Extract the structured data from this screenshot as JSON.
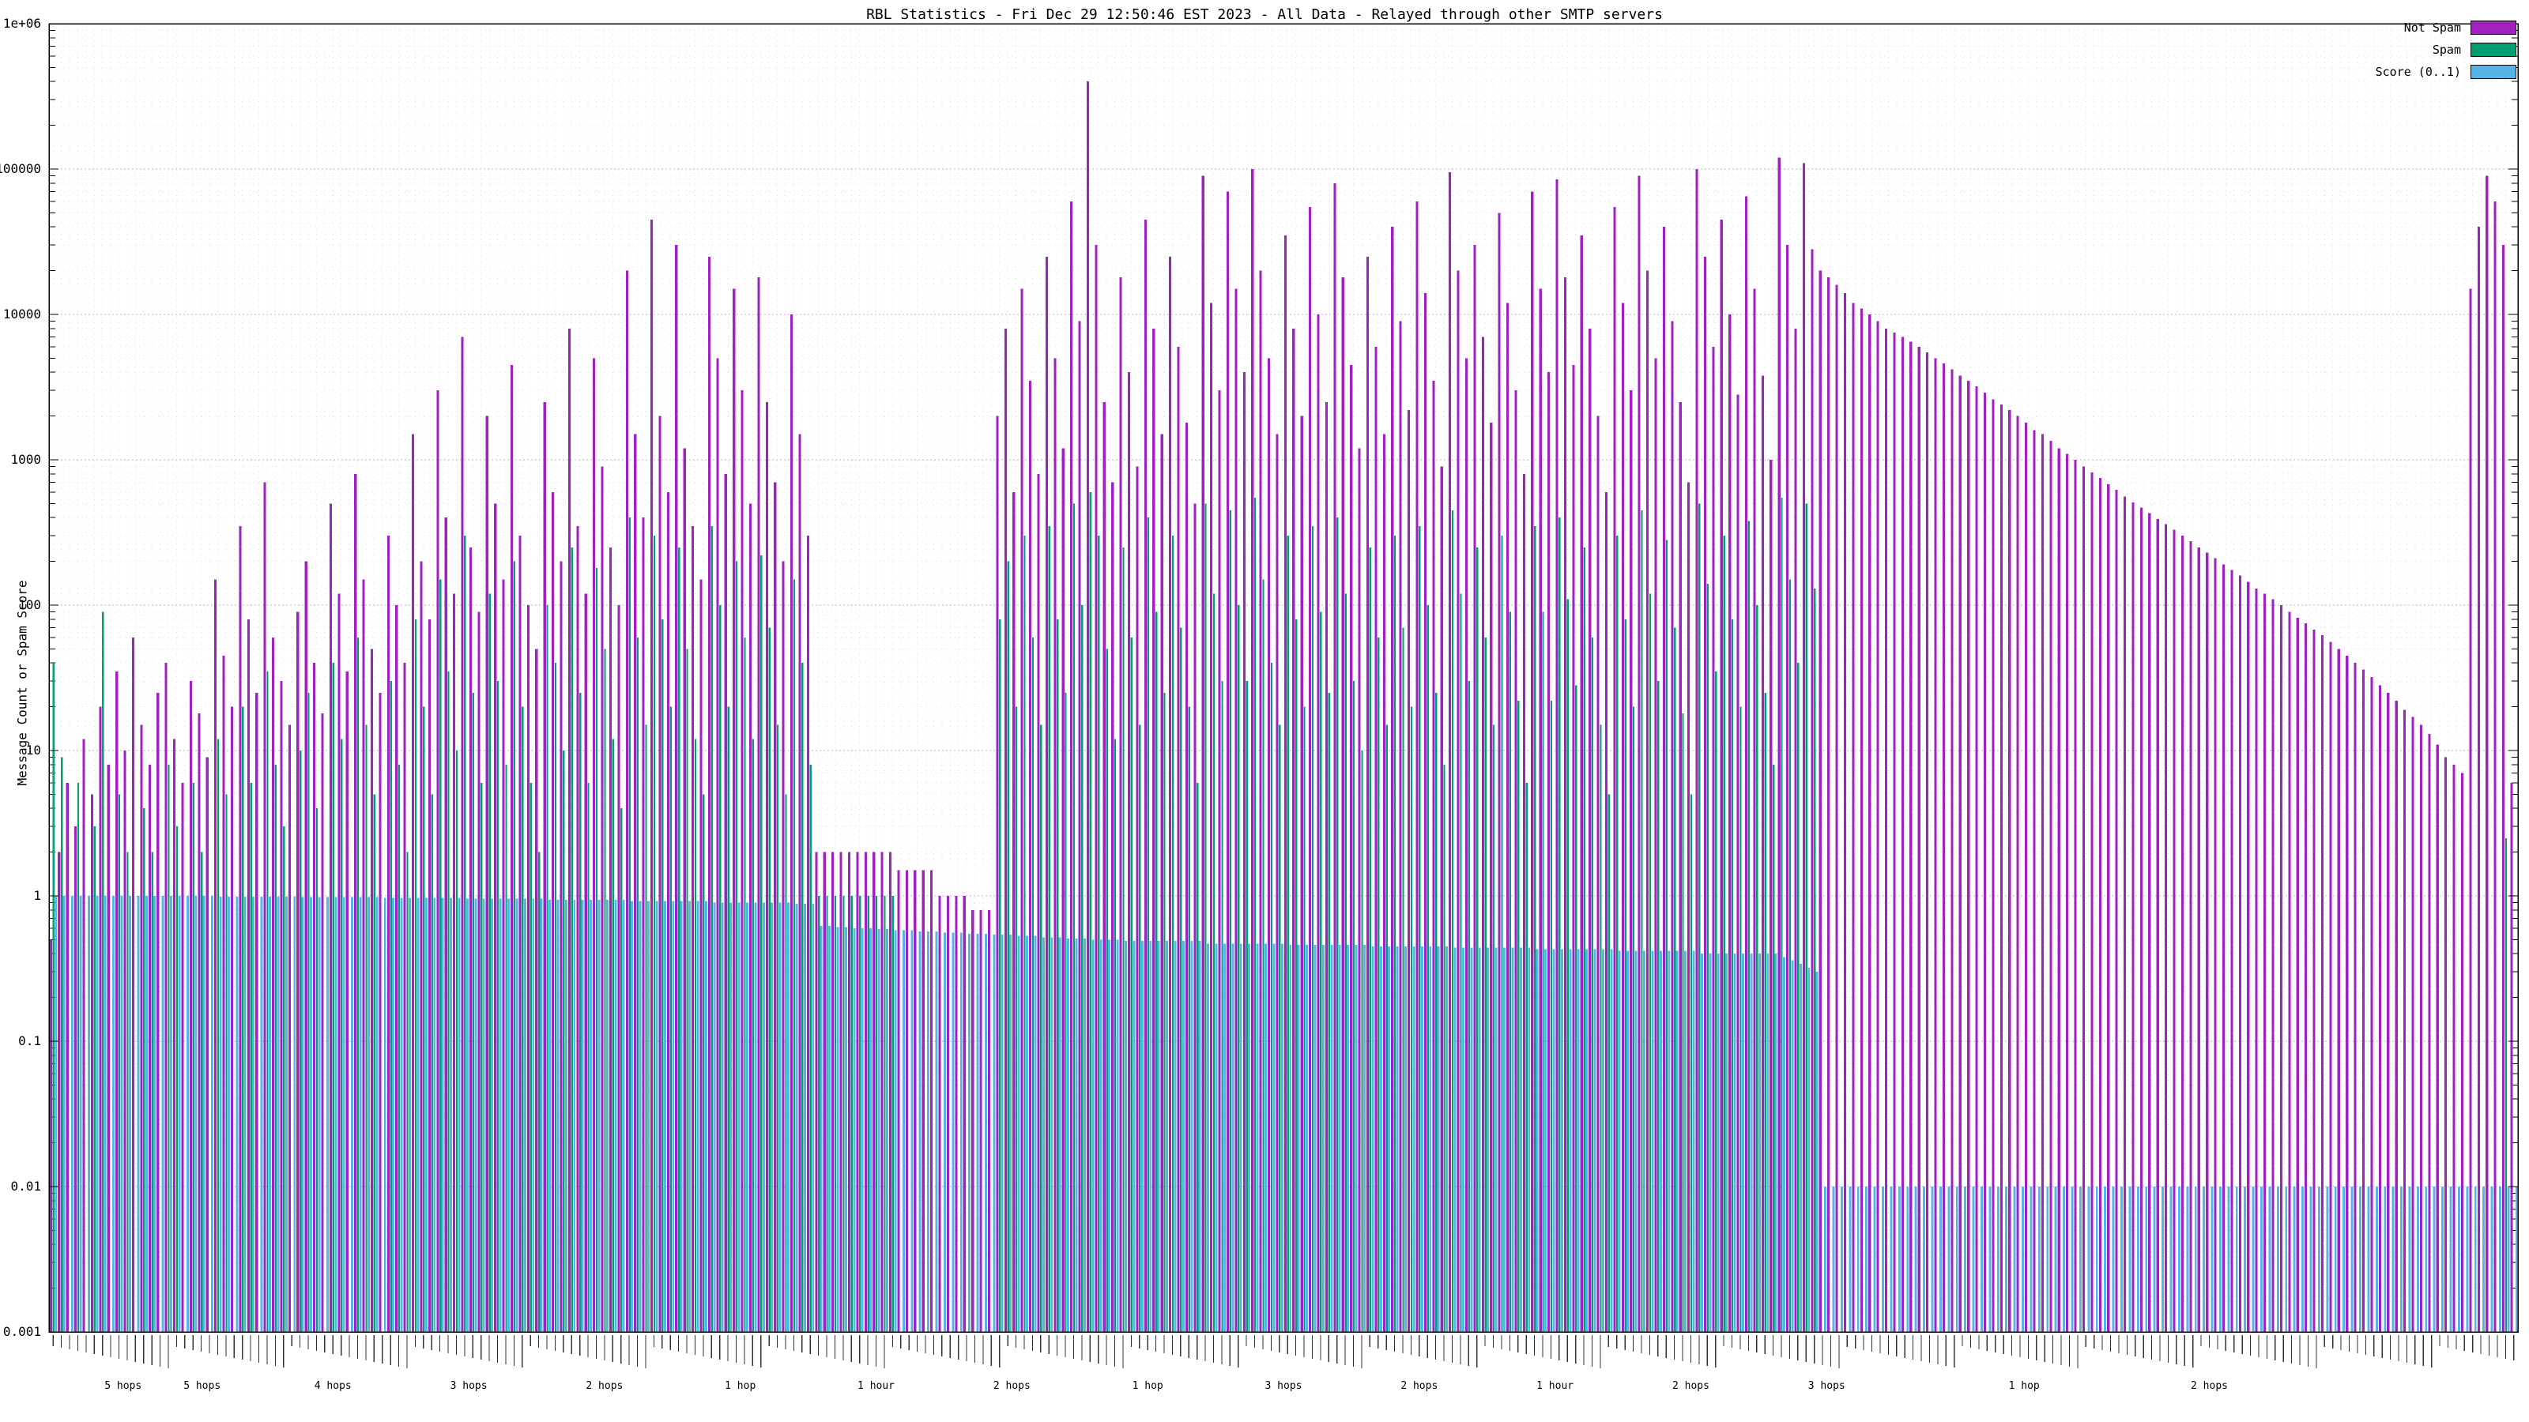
{
  "page": {
    "title": "RBL Statistics - Fri Dec 29 12:50:46 EST 2023 - All Data - Relayed through other SMTP servers"
  },
  "chart_data": {
    "type": "bar",
    "title": "RBL Statistics - Fri Dec 29 12:50:46 EST 2023 - All Data - Relayed through other SMTP servers",
    "xlabel": "",
    "ylabel": "Message Count or Spam Score",
    "y_scale": "log10",
    "ylim": [
      0.001,
      1000000
    ],
    "y_tick_labels": [
      "1e+06",
      "100000",
      "10000",
      "1000",
      "100",
      "10",
      "1",
      "0.1",
      "0.01",
      "0.001"
    ],
    "grid": true,
    "legend_position": "top-right",
    "x_tick_labels_note": "dense per-bar rotated RBL host labels, illegible at capture resolution",
    "x_axis_annotations": [
      {
        "pos": 0.03,
        "text": "5 hops"
      },
      {
        "pos": 0.062,
        "text": "5 hops"
      },
      {
        "pos": 0.115,
        "text": "4 hops"
      },
      {
        "pos": 0.17,
        "text": "3 hops"
      },
      {
        "pos": 0.225,
        "text": "2 hops"
      },
      {
        "pos": 0.28,
        "text": "1 hop"
      },
      {
        "pos": 0.335,
        "text": "1 hour"
      },
      {
        "pos": 0.39,
        "text": "2 hops"
      },
      {
        "pos": 0.445,
        "text": "1 hop"
      },
      {
        "pos": 0.5,
        "text": "3 hops"
      },
      {
        "pos": 0.555,
        "text": "2 hops"
      },
      {
        "pos": 0.61,
        "text": "1 hour"
      },
      {
        "pos": 0.665,
        "text": "2 hops"
      },
      {
        "pos": 0.72,
        "text": "3 hops"
      },
      {
        "pos": 0.8,
        "text": "1 hop"
      },
      {
        "pos": 0.875,
        "text": "2 hops"
      }
    ],
    "legend": [
      {
        "label": "Not Spam",
        "color": "#a020c0"
      },
      {
        "label": "Spam",
        "color": "#009e73"
      },
      {
        "label": "Score (0..1)",
        "color": "#56b4e9"
      }
    ],
    "series": [
      {
        "name": "Not Spam",
        "color": "#a020c0",
        "values": [
          0.5,
          2,
          6,
          3,
          12,
          5,
          20,
          8,
          35,
          10,
          60,
          15,
          8,
          25,
          40,
          12,
          6,
          30,
          18,
          9,
          150,
          45,
          20,
          350,
          80,
          25,
          700,
          60,
          30,
          15,
          90,
          200,
          40,
          18,
          500,
          120,
          35,
          800,
          150,
          50,
          25,
          300,
          100,
          40,
          1500,
          200,
          80,
          3000,
          400,
          120,
          7000,
          250,
          90,
          2000,
          500,
          150,
          4500,
          300,
          100,
          50,
          2500,
          600,
          200,
          8000,
          350,
          120,
          5000,
          900,
          250,
          100,
          20000,
          1500,
          400,
          45000,
          2000,
          600,
          30000,
          1200,
          350,
          150,
          25000,
          5000,
          800,
          15000,
          3000,
          500,
          18000,
          2500,
          700,
          200,
          10000,
          1500,
          300,
          2,
          2,
          2,
          2,
          2,
          2,
          2,
          2,
          2,
          2,
          1.5,
          1.5,
          1.5,
          1.5,
          1.5,
          1,
          1,
          1,
          1,
          0.8,
          0.8,
          0.8,
          2000,
          8000,
          600,
          15000,
          3500,
          800,
          25000,
          5000,
          1200,
          60000,
          9000,
          400000,
          30000,
          2500,
          700,
          18000,
          4000,
          900,
          45000,
          8000,
          1500,
          25000,
          6000,
          1800,
          500,
          90000,
          12000,
          3000,
          70000,
          15000,
          4000,
          100000,
          20000,
          5000,
          1500,
          35000,
          8000,
          2000,
          55000,
          10000,
          2500,
          80000,
          18000,
          4500,
          1200,
          25000,
          6000,
          1500,
          40000,
          9000,
          2200,
          60000,
          14000,
          3500,
          900,
          95000,
          20000,
          5000,
          30000,
          7000,
          1800,
          50000,
          12000,
          3000,
          800,
          70000,
          15000,
          4000,
          85000,
          18000,
          4500,
          35000,
          8000,
          2000,
          600,
          55000,
          12000,
          3000,
          90000,
          20000,
          5000,
          40000,
          9000,
          2500,
          700,
          100000,
          25000,
          6000,
          45000,
          10000,
          2800,
          65000,
          15000,
          3800,
          1000,
          120000,
          30000,
          8000,
          110000,
          28000,
          20000,
          18000,
          16000,
          14000,
          12000,
          11000,
          10000,
          9000,
          8000,
          7500,
          7000,
          6500,
          6000,
          5500,
          5000,
          4600,
          4200,
          3800,
          3500,
          3200,
          2900,
          2600,
          2400,
          2200,
          2000,
          1800,
          1600,
          1500,
          1350,
          1200,
          1100,
          1000,
          900,
          820,
          750,
          680,
          620,
          560,
          510,
          470,
          430,
          390,
          360,
          330,
          300,
          275,
          250,
          230,
          210,
          190,
          175,
          160,
          145,
          130,
          120,
          110,
          100,
          90,
          82,
          75,
          68,
          62,
          56,
          50,
          45,
          40,
          36,
          32,
          28,
          25,
          22,
          19,
          17,
          15,
          13,
          11,
          9,
          8,
          7,
          15000,
          40000,
          90000,
          60000,
          30000,
          6
        ]
      },
      {
        "name": "Spam",
        "color": "#009e73",
        "values": [
          40,
          9,
          0,
          6,
          0,
          3,
          90,
          0,
          5,
          2,
          0,
          4,
          2,
          0,
          8,
          3,
          0,
          6,
          2,
          0,
          12,
          5,
          0,
          20,
          6,
          0,
          35,
          8,
          3,
          0,
          10,
          25,
          4,
          0,
          40,
          12,
          0,
          60,
          15,
          5,
          0,
          30,
          8,
          2,
          80,
          20,
          5,
          150,
          35,
          10,
          300,
          25,
          6,
          120,
          30,
          8,
          200,
          20,
          6,
          2,
          100,
          40,
          10,
          250,
          25,
          6,
          180,
          50,
          12,
          4,
          400,
          60,
          15,
          300,
          80,
          20,
          250,
          50,
          12,
          5,
          350,
          100,
          20,
          200,
          60,
          12,
          220,
          70,
          15,
          5,
          150,
          40,
          8,
          1,
          1,
          1,
          1,
          1,
          1,
          1,
          1,
          1,
          1,
          0,
          0,
          0,
          0,
          0,
          0,
          0,
          0,
          0,
          0,
          0,
          0,
          80,
          200,
          20,
          300,
          60,
          15,
          350,
          80,
          25,
          500,
          100,
          600,
          300,
          50,
          12,
          250,
          60,
          15,
          400,
          90,
          25,
          300,
          70,
          20,
          6,
          500,
          120,
          30,
          450,
          100,
          30,
          550,
          150,
          40,
          15,
          300,
          80,
          20,
          350,
          90,
          25,
          400,
          120,
          30,
          10,
          250,
          60,
          15,
          300,
          70,
          20,
          350,
          100,
          25,
          8,
          450,
          120,
          30,
          250,
          60,
          15,
          300,
          90,
          22,
          6,
          350,
          90,
          22,
          400,
          110,
          28,
          250,
          60,
          15,
          5,
          300,
          80,
          20,
          450,
          120,
          30,
          280,
          70,
          18,
          5,
          500,
          140,
          35,
          300,
          80,
          20,
          380,
          100,
          25,
          8,
          550,
          150,
          40,
          500,
          130,
          0,
          0,
          0,
          0,
          0,
          0,
          0,
          0,
          0,
          0,
          0,
          0,
          0,
          0,
          0,
          0,
          0,
          0,
          0,
          0,
          0,
          0,
          0,
          0,
          0,
          0,
          0,
          0,
          0,
          0,
          0,
          0,
          0,
          0,
          0,
          0,
          0,
          0,
          0,
          0,
          0,
          0,
          0,
          0,
          0,
          0,
          0,
          0,
          0,
          0,
          0,
          0,
          0,
          0,
          0,
          0,
          0,
          0,
          0,
          0,
          0,
          0,
          0,
          0,
          0,
          0,
          0,
          0,
          0,
          0,
          0,
          0,
          0,
          0,
          0,
          0,
          0,
          0,
          0,
          0,
          0,
          0,
          0,
          2.5,
          0
        ]
      },
      {
        "name": "Score (0..1)",
        "color": "#56b4e9",
        "values": [
          1,
          1,
          1,
          1,
          1,
          1,
          1,
          1,
          1,
          1,
          1,
          1,
          1,
          1,
          1,
          1,
          1,
          1,
          1,
          1,
          0.99,
          0.99,
          0.99,
          0.99,
          0.99,
          0.99,
          0.99,
          0.99,
          0.99,
          0.99,
          0.98,
          0.98,
          0.98,
          0.98,
          0.98,
          0.98,
          0.98,
          0.98,
          0.98,
          0.98,
          0.97,
          0.97,
          0.97,
          0.97,
          0.97,
          0.97,
          0.97,
          0.97,
          0.97,
          0.97,
          0.96,
          0.96,
          0.96,
          0.96,
          0.96,
          0.96,
          0.96,
          0.96,
          0.96,
          0.96,
          0.94,
          0.94,
          0.94,
          0.94,
          0.94,
          0.94,
          0.94,
          0.94,
          0.94,
          0.94,
          0.92,
          0.92,
          0.92,
          0.92,
          0.92,
          0.92,
          0.92,
          0.92,
          0.92,
          0.92,
          0.9,
          0.9,
          0.9,
          0.9,
          0.9,
          0.9,
          0.9,
          0.9,
          0.9,
          0.9,
          0.88,
          0.88,
          0.88,
          0.62,
          0.62,
          0.61,
          0.61,
          0.6,
          0.6,
          0.6,
          0.59,
          0.59,
          0.58,
          0.58,
          0.58,
          0.57,
          0.57,
          0.57,
          0.56,
          0.56,
          0.56,
          0.55,
          0.55,
          0.55,
          0.54,
          0.54,
          0.54,
          0.53,
          0.53,
          0.53,
          0.52,
          0.52,
          0.52,
          0.51,
          0.51,
          0.51,
          0.5,
          0.5,
          0.5,
          0.5,
          0.49,
          0.49,
          0.49,
          0.49,
          0.49,
          0.49,
          0.49,
          0.49,
          0.49,
          0.49,
          0.47,
          0.47,
          0.47,
          0.47,
          0.47,
          0.47,
          0.47,
          0.47,
          0.47,
          0.47,
          0.46,
          0.46,
          0.46,
          0.46,
          0.46,
          0.46,
          0.46,
          0.46,
          0.46,
          0.46,
          0.45,
          0.45,
          0.45,
          0.45,
          0.45,
          0.45,
          0.45,
          0.45,
          0.45,
          0.45,
          0.44,
          0.44,
          0.44,
          0.44,
          0.44,
          0.44,
          0.44,
          0.44,
          0.44,
          0.44,
          0.43,
          0.43,
          0.43,
          0.43,
          0.43,
          0.43,
          0.43,
          0.43,
          0.43,
          0.43,
          0.42,
          0.42,
          0.42,
          0.42,
          0.42,
          0.42,
          0.42,
          0.42,
          0.42,
          0.42,
          0.4,
          0.4,
          0.4,
          0.4,
          0.4,
          0.4,
          0.4,
          0.4,
          0.4,
          0.4,
          0.38,
          0.36,
          0.34,
          0.32,
          0.3,
          0.01,
          0.01,
          0.01,
          0.01,
          0.01,
          0.01,
          0.01,
          0.01,
          0.01,
          0.01,
          0.01,
          0.01,
          0.01,
          0.01,
          0.01,
          0.01,
          0.01,
          0.01,
          0.01,
          0.01,
          0.01,
          0.01,
          0.01,
          0.01,
          0.01,
          0.01,
          0.01,
          0.01,
          0.01,
          0.01,
          0.01,
          0.01,
          0.01,
          0.01,
          0.01,
          0.01,
          0.01,
          0.01,
          0.01,
          0.01,
          0.01,
          0.01,
          0.01,
          0.01,
          0.01,
          0.01,
          0.01,
          0.01,
          0.01,
          0.01,
          0.01,
          0.01,
          0.01,
          0.01,
          0.01,
          0.01,
          0.01,
          0.01,
          0.01,
          0.01,
          0.01,
          0.01,
          0.01,
          0.01,
          0.01,
          0.01,
          0.01,
          0.01,
          0.01,
          0.01,
          0.01,
          0.01,
          0.01,
          0.01,
          0.01,
          0.01,
          0.01,
          0.01,
          0.01,
          0.01,
          0.01,
          0.01,
          0.01,
          0.01,
          0.01
        ]
      }
    ]
  }
}
